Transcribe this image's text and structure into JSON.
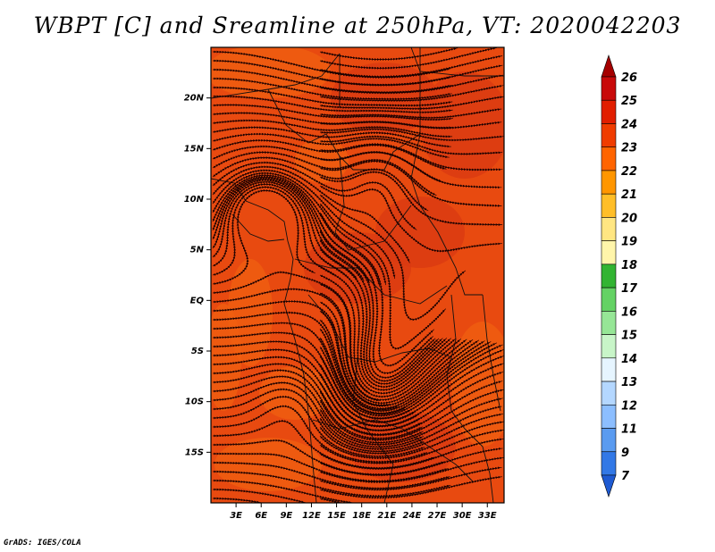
{
  "title": "WBPT [C] and Sreamline at 250hPa, VT: 2020042203",
  "footer": "GrADS: IGES/COLA",
  "map": {
    "lon_range": [
      0,
      35
    ],
    "lat_range": [
      -20,
      25
    ],
    "lon_ticks": [
      "3E",
      "6E",
      "9E",
      "12E",
      "15E",
      "18E",
      "21E",
      "24E",
      "27E",
      "30E",
      "33E"
    ],
    "lat_ticks": [
      "20N",
      "15N",
      "10N",
      "5N",
      "EQ",
      "5S",
      "10S",
      "15S"
    ]
  },
  "colorbar": {
    "labels": [
      "26",
      "25",
      "24",
      "23",
      "22",
      "21",
      "20",
      "19",
      "18",
      "17",
      "16",
      "15",
      "14",
      "13",
      "12",
      "11",
      "9",
      "7"
    ],
    "colors": [
      "#a50000",
      "#c80a0a",
      "#e11e00",
      "#f03c00",
      "#ff6400",
      "#ff9600",
      "#ffbe28",
      "#ffe682",
      "#fff5aa",
      "#32b432",
      "#64d264",
      "#96e696",
      "#c8f5c8",
      "#e6f5ff",
      "#b4d7ff",
      "#8cbeff",
      "#5a9bf0",
      "#3278e6",
      "#1e5ad2"
    ]
  },
  "colors": {
    "field_base": "#e84a10",
    "field_warm": "#f06010",
    "field_hot": "#d93a12",
    "streamline": "#1a0000",
    "border": "#111111"
  }
}
